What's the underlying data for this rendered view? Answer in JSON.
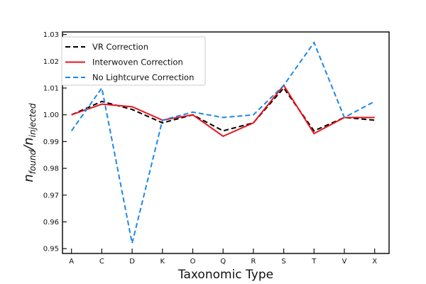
{
  "chart_data": {
    "type": "line",
    "title": "",
    "xlabel": "Taxonomic Type",
    "ylabel": "n_found / n_injected",
    "ylabel_main": "n",
    "ylabel_sub1": "found",
    "ylabel_slash": "/n",
    "ylabel_sub2": "injected",
    "categories": [
      "A",
      "C",
      "D",
      "K",
      "O",
      "Q",
      "R",
      "S",
      "T",
      "V",
      "X"
    ],
    "ylim": [
      0.95,
      1.03
    ],
    "yticks": [
      "0.95",
      "0.96",
      "0.97",
      "0.98",
      "0.99",
      "1.00",
      "1.01",
      "1.02",
      "1.03"
    ],
    "grid": false,
    "legend_position": "top-left",
    "series": [
      {
        "name": "VR Correction",
        "color": "#000000",
        "dashed": true,
        "values": [
          1.0,
          1.005,
          1.002,
          0.997,
          1.0,
          0.994,
          0.997,
          1.01,
          0.994,
          0.999,
          0.998
        ]
      },
      {
        "name": "Interwoven Correction",
        "color": "#e8141e",
        "dashed": false,
        "values": [
          1.0,
          1.004,
          1.003,
          0.998,
          1.0,
          0.992,
          0.997,
          1.011,
          0.993,
          0.999,
          0.999
        ]
      },
      {
        "name": "No Lightcurve Correction",
        "color": "#1e88e5",
        "dashed": true,
        "values": [
          0.994,
          1.01,
          0.952,
          0.998,
          1.001,
          0.999,
          1.0,
          1.011,
          1.027,
          0.999,
          1.005
        ]
      }
    ]
  }
}
